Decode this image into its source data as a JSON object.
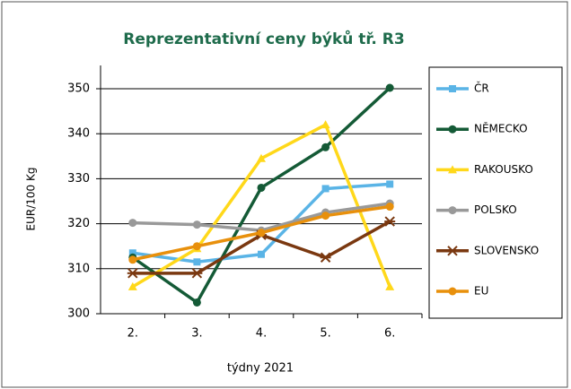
{
  "chart_data": {
    "type": "line",
    "title": "Reprezentativní ceny býků tř. R3",
    "x_label": "týdny 2021",
    "y_label": "EUR/100 Kg",
    "categories": [
      "2.",
      "3.",
      "4.",
      "5.",
      "6."
    ],
    "ylim": [
      300,
      350
    ],
    "yticks": [
      300,
      310,
      320,
      330,
      340,
      350
    ],
    "grid": true,
    "legend": "right",
    "series": [
      {
        "name": "ČR",
        "color": "#5ab4e6",
        "marker": "square",
        "values": [
          313.5,
          311.5,
          313.2,
          327.8,
          328.8
        ]
      },
      {
        "name": "NĚMECKO",
        "color": "#145a36",
        "marker": "circle",
        "values": [
          312.5,
          302.5,
          328,
          337,
          350.2
        ]
      },
      {
        "name": "RAKOUSKO",
        "color": "#ffd81a",
        "marker": "triangle",
        "values": [
          306,
          314.5,
          334.5,
          342,
          306
        ]
      },
      {
        "name": "POLSKO",
        "color": "#999999",
        "marker": "circle",
        "values": [
          320.2,
          319.8,
          318.5,
          322.5,
          324.5
        ]
      },
      {
        "name": "SLOVENSKO",
        "color": "#7a3810",
        "marker": "star",
        "values": [
          309,
          309,
          317.5,
          312.5,
          320.5
        ]
      },
      {
        "name": "EU",
        "color": "#e8900c",
        "marker": "circle",
        "values": [
          312,
          315,
          318,
          321.8,
          323.8
        ]
      }
    ]
  }
}
